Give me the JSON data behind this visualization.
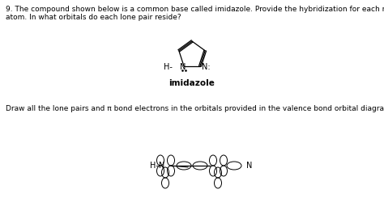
{
  "background_color": "#ffffff",
  "text1": "9. The compound shown below is a common base called imidazole. Provide the hybridization for each nitrogen",
  "text2": "atom. In what orbitals do each lone pair reside?",
  "text3": "Draw all the lone pairs and π bond electrons in the orbitals provided in the valence bond orbital diagram below.",
  "label_imidazole": "imidazole",
  "figsize": [
    4.74,
    2.5
  ],
  "dpi": 100
}
